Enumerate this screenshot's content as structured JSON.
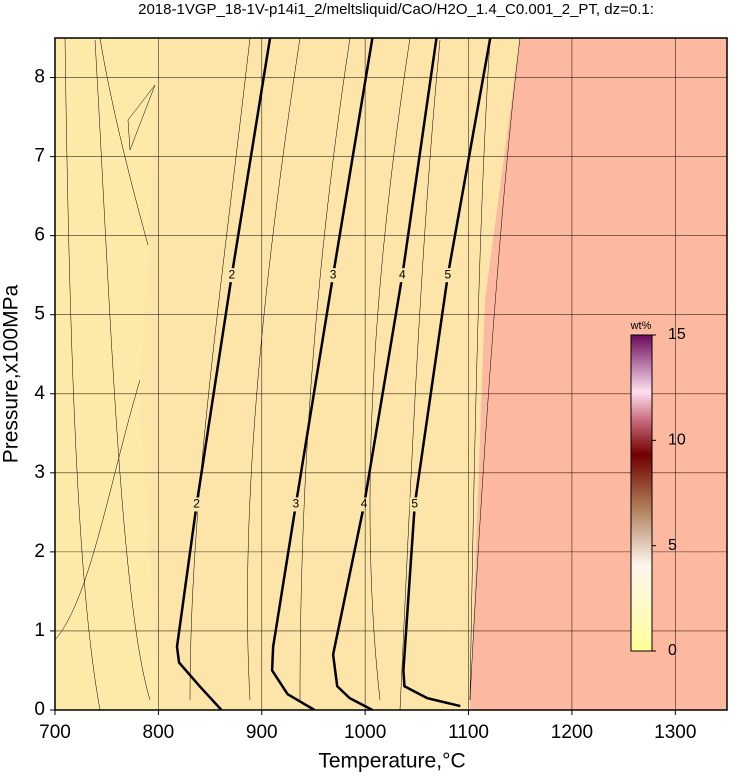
{
  "chart_data": {
    "type": "contour",
    "title": "2018-1VGP_18-1V-p14i1_2/meltsliquid/CaO/H2O_1.4_C0.001_2_PT, dz=0.1:",
    "x_label": "Temperature,°C",
    "y_label": "Pressure,x100MPa",
    "xlim": [
      700,
      1350
    ],
    "ylim": [
      0,
      8.5
    ],
    "xticks": [
      700,
      800,
      900,
      1000,
      1100,
      1200,
      1300
    ],
    "yticks": [
      0,
      1,
      2,
      3,
      4,
      5,
      6,
      7,
      8
    ],
    "grid": true,
    "series": [
      {
        "name": "2",
        "color": "#000000",
        "x": [
          861,
          840,
          820,
          818,
          837,
          871,
          908
        ],
        "values": [
          0,
          0.3,
          0.6,
          0.8,
          2.6,
          5.5,
          8.5
        ]
      },
      {
        "name": "3",
        "color": "#000000",
        "x": [
          951,
          925,
          910,
          911,
          933,
          969,
          1007
        ],
        "values": [
          0,
          0.2,
          0.5,
          0.8,
          2.6,
          5.5,
          8.5
        ]
      },
      {
        "name": "4",
        "color": "#000000",
        "x": [
          1007,
          985,
          973,
          969,
          999,
          1036,
          1069
        ],
        "values": [
          0,
          0.15,
          0.3,
          0.7,
          2.6,
          5.5,
          8.5
        ]
      },
      {
        "name": "5",
        "color": "#000000",
        "x": [
          1092,
          1060,
          1038,
          1037,
          1048,
          1080,
          1121
        ],
        "values": [
          0.05,
          0.15,
          0.3,
          0.5,
          2.6,
          5.5,
          8.5
        ]
      }
    ],
    "colorbar": {
      "label": "wt%",
      "lim": [
        0,
        15
      ],
      "ticks": [
        0,
        5,
        10,
        15
      ]
    }
  }
}
